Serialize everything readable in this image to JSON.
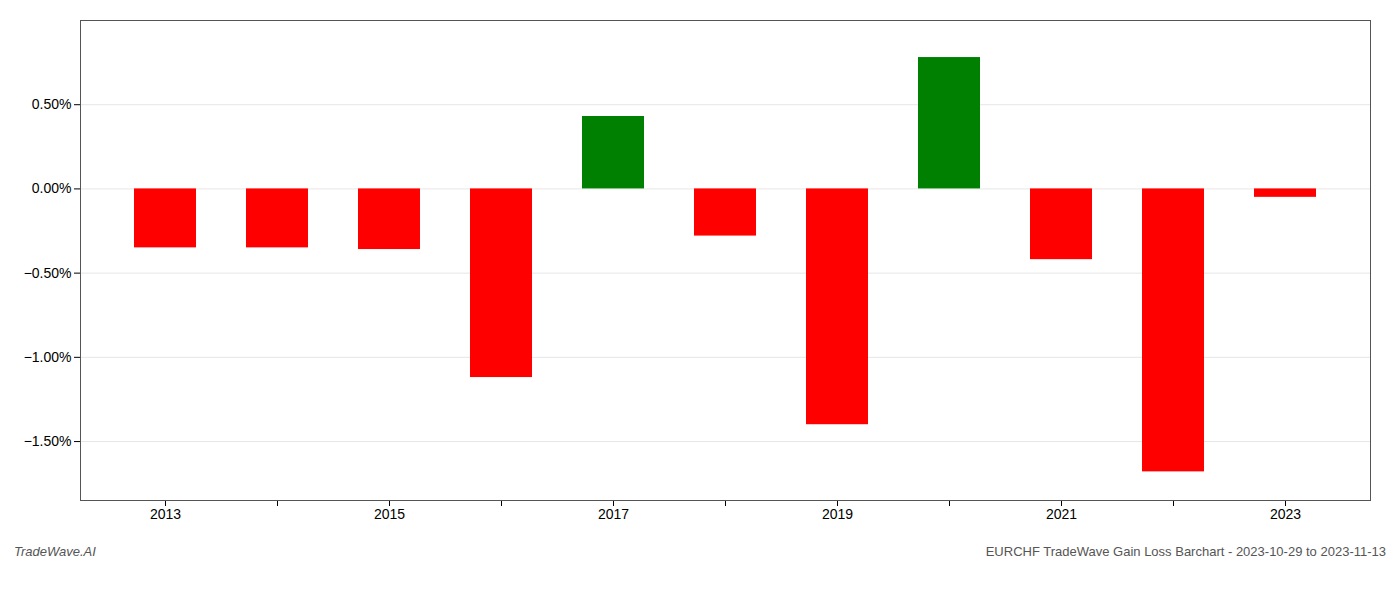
{
  "chart_data": {
    "type": "bar",
    "categories": [
      "2013",
      null,
      "2015",
      null,
      "2017",
      null,
      "2019",
      null,
      "2021",
      null,
      "2023"
    ],
    "values": [
      -0.35,
      -0.35,
      -0.36,
      -1.12,
      0.43,
      -0.28,
      -1.4,
      0.78,
      -0.42,
      -1.68,
      -0.05
    ],
    "colors": [
      "#ff0000",
      "#ff0000",
      "#ff0000",
      "#ff0000",
      "#008000",
      "#ff0000",
      "#ff0000",
      "#008000",
      "#ff0000",
      "#ff0000",
      "#ff0000"
    ],
    "ylim": [
      -1.85,
      1.0
    ],
    "yticks": [
      {
        "value": -1.5,
        "label": "−1.50%"
      },
      {
        "value": -1.0,
        "label": "−1.00%"
      },
      {
        "value": -0.5,
        "label": "−0.50%"
      },
      {
        "value": 0.0,
        "label": "0.00%"
      },
      {
        "value": 0.5,
        "label": "0.50%"
      }
    ],
    "grid": true,
    "annotations": [
      "TradeWave.AI",
      "EURCHF TradeWave Gain Loss Barchart - 2023-10-29 to 2023-11-13"
    ]
  }
}
